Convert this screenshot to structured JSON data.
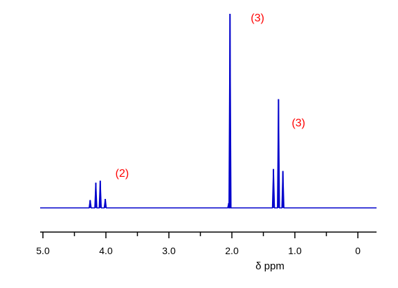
{
  "chart_data": {
    "type": "line",
    "x_reversed": true,
    "xlabel": "δ ppm",
    "xlim": [
      5.05,
      -0.3
    ],
    "ticks": [
      {
        "value": 5.0,
        "label": "5.0"
      },
      {
        "value": 4.0,
        "label": "4.0"
      },
      {
        "value": 3.0,
        "label": "3.0"
      },
      {
        "value": 2.0,
        "label": "2.0"
      },
      {
        "value": 1.0,
        "label": "1.0"
      },
      {
        "value": 0,
        "label": "0"
      }
    ],
    "minor_ticks": [
      4.5,
      3.5,
      2.5,
      1.5,
      0.5
    ],
    "peaks": [
      {
        "ppm": 4.25,
        "height": 0.04
      },
      {
        "ppm": 4.16,
        "height": 0.13
      },
      {
        "ppm": 4.09,
        "height": 0.14
      },
      {
        "ppm": 4.01,
        "height": 0.046
      },
      {
        "ppm": 2.05,
        "height": 0.025
      },
      {
        "ppm": 2.03,
        "height": 1.0
      },
      {
        "ppm": 1.34,
        "height": 0.2
      },
      {
        "ppm": 1.26,
        "height": 0.56
      },
      {
        "ppm": 1.19,
        "height": 0.19
      }
    ],
    "annotations": [
      {
        "text": "(2)",
        "ppm": 3.85,
        "height": 0.16
      },
      {
        "text": "(3)",
        "ppm": 1.7,
        "height": 0.96
      },
      {
        "text": "(3)",
        "ppm": 1.05,
        "height": 0.42
      }
    ],
    "colors": {
      "trace": "#0000cc",
      "annotation": "#ff0000",
      "axis": "#000000"
    }
  }
}
